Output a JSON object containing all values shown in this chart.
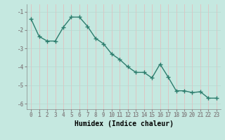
{
  "x": [
    0,
    1,
    2,
    3,
    4,
    5,
    6,
    7,
    8,
    9,
    10,
    11,
    12,
    13,
    14,
    15,
    16,
    17,
    18,
    19,
    20,
    21,
    22,
    23
  ],
  "y": [
    -1.4,
    -2.35,
    -2.6,
    -2.6,
    -1.85,
    -1.3,
    -1.3,
    -1.8,
    -2.45,
    -2.75,
    -3.3,
    -3.6,
    -4.0,
    -4.3,
    -4.3,
    -4.6,
    -3.85,
    -4.55,
    -5.3,
    -5.3,
    -5.4,
    -5.35,
    -5.7,
    -5.7
  ],
  "xlabel": "Humidex (Indice chaleur)",
  "xlim": [
    -0.5,
    23.5
  ],
  "ylim": [
    -6.3,
    -0.6
  ],
  "yticks": [
    -6,
    -5,
    -4,
    -3,
    -2,
    -1
  ],
  "xticks": [
    0,
    1,
    2,
    3,
    4,
    5,
    6,
    7,
    8,
    9,
    10,
    11,
    12,
    13,
    14,
    15,
    16,
    17,
    18,
    19,
    20,
    21,
    22,
    23
  ],
  "line_color": "#2d7d6d",
  "marker": "+",
  "marker_size": 4,
  "bg_color": "#c5e8e0",
  "vgrid_color": "#e8b8b8",
  "hgrid_color": "#b8d8d0",
  "spine_color": "#888888",
  "line_width": 1.0,
  "tick_fontsize": 5.5,
  "xlabel_fontsize": 7.0
}
